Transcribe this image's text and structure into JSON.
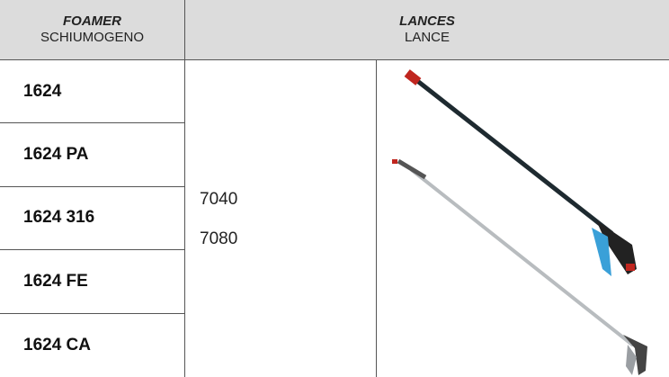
{
  "header": {
    "foamer": {
      "title": "FOAMER",
      "subtitle": "SCHIUMOGENO"
    },
    "lances": {
      "title": "LANCES",
      "subtitle": "LANCE"
    }
  },
  "table": {
    "foamers": [
      "1624",
      "1624 PA",
      "1624 316",
      "1624 FE",
      "1624 CA"
    ],
    "lances": [
      "7040",
      "7080"
    ]
  }
}
